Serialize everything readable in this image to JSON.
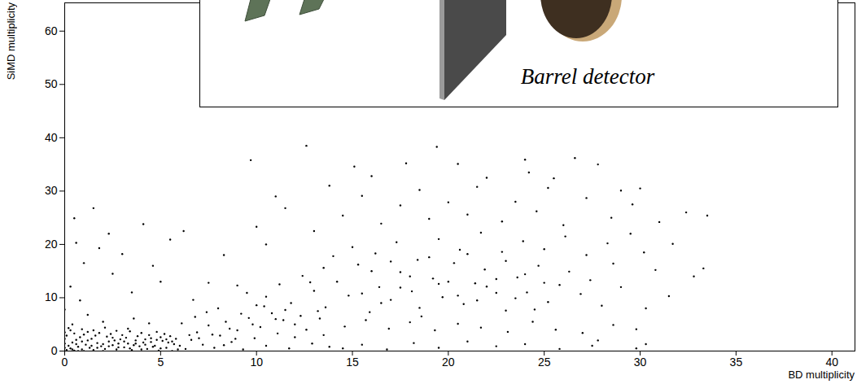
{
  "chart_data": {
    "type": "scatter",
    "x_label": "BD multiplicity",
    "y_label": "SiMD multiplicity",
    "annotations": [
      {
        "text": "Barrel detector"
      }
    ],
    "xlim": [
      0,
      41.2
    ],
    "xticks": [
      0,
      5,
      10,
      15,
      20,
      25,
      30,
      35,
      40
    ],
    "ylim": [
      0,
      65.3
    ],
    "yticks": [
      0,
      10,
      20,
      30,
      40,
      50,
      60
    ],
    "grid": false,
    "color": "#000000",
    "marker": "dot",
    "x": [
      0.1,
      0.3,
      0.5,
      0.7,
      0.9,
      1.1,
      1.3,
      1.5,
      1.7,
      1.9,
      2.1,
      2.3,
      2.5,
      2.7,
      2.9,
      3.1,
      3.3,
      3.5,
      3.7,
      3.9,
      4.1,
      4.3,
      4.5,
      4.7,
      4.9,
      5.1,
      5.3,
      5.5,
      5.7,
      5.9,
      0.2,
      0.4,
      0.6,
      0.8,
      1.0,
      1.2,
      0.3,
      0.1,
      0.5,
      0.7,
      1.0,
      1.4,
      1.6,
      1.8,
      2.0,
      2.2,
      2.4,
      2.6,
      2.8,
      3.0,
      3.2,
      3.4,
      3.6,
      3.8,
      4.0,
      4.2,
      4.4,
      4.6,
      4.8,
      5.0,
      5.2,
      5.4,
      5.6,
      5.8,
      6.0,
      0.0,
      0.0,
      0.0,
      0.0,
      0.2,
      0.9,
      1.5,
      2.1,
      2.7,
      3.3,
      0.4,
      0.6,
      0.9,
      1.2,
      1.4,
      1.7,
      2.0,
      2.3,
      2.5,
      2.8,
      3.1,
      3.4,
      3.7,
      4.0,
      4.2,
      4.5,
      4.8,
      5.0,
      5.3,
      5.6,
      6.3,
      6.6,
      6.9,
      7.2,
      7.5,
      7.8,
      8.1,
      8.4,
      8.7,
      9.0,
      9.3,
      9.6,
      9.9,
      10.2,
      10.5,
      10.8,
      11.1,
      11.4,
      11.7,
      12.0,
      12.3,
      12.6,
      12.9,
      13.2,
      13.5,
      13.8,
      6.1,
      6.8,
      7.4,
      8.0,
      8.6,
      9.2,
      9.8,
      10.4,
      11.0,
      6.5,
      7.0,
      7.7,
      8.3,
      8.9,
      14.5,
      15.5,
      16.8,
      18.2,
      19.5,
      21.0,
      22.5,
      24.0,
      25.8,
      27.5,
      29.8,
      30.3,
      10.5,
      11.2,
      11.8,
      12.4,
      13.0,
      13.6,
      14.2,
      14.8,
      15.3,
      15.9,
      16.4,
      17.0,
      17.5,
      18.1,
      18.6,
      19.2,
      19.7,
      20.3,
      20.8,
      21.4,
      21.9,
      22.5,
      23.0,
      23.6,
      24.1,
      24.7,
      25.2,
      25.8,
      26.3,
      26.9,
      27.4,
      28.0,
      12.0,
      13.3,
      14.6,
      15.7,
      16.9,
      18.0,
      19.3,
      20.5,
      21.7,
      23.1,
      24.4,
      25.6,
      27.0,
      28.6,
      14.0,
      15.0,
      16.2,
      17.3,
      18.4,
      19.5,
      20.6,
      21.7,
      22.8,
      23.9,
      25.0,
      26.1,
      27.2,
      28.3,
      16.0,
      17.0,
      18.0,
      19.0,
      20.0,
      21.0,
      22.0,
      23.0,
      24.0,
      25.0,
      15.5,
      16.5,
      17.5,
      18.5,
      19.5,
      20.5,
      21.5,
      22.5,
      23.5,
      24.5,
      13.5,
      12.8,
      11.5,
      10.0,
      9.5,
      9.0,
      10.0,
      11.5,
      13.0,
      14.5,
      15.5,
      16.5,
      17.5,
      18.5,
      19.0,
      20.0,
      21.0,
      21.5,
      22.0,
      22.8,
      23.5,
      24.0,
      24.6,
      25.2,
      26.0,
      26.6,
      27.2,
      27.8,
      28.5,
      29.0,
      30.0,
      29.6,
      9.7,
      12.6,
      15.1,
      17.8,
      19.4,
      11.0,
      10.5,
      13.8,
      16.0,
      20.5,
      25.5,
      24.2,
      29.5,
      30.2,
      31.0,
      31.7,
      32.4,
      33.5,
      33.3,
      32.8,
      30.8,
      31.5,
      29.0,
      30.3,
      28.6,
      29.8,
      27.8,
      0.6,
      0.5,
      1.5,
      1.0,
      0.3,
      1.8,
      2.3,
      0.8,
      1.2,
      2.5,
      3.5,
      4.1,
      5.5,
      6.2,
      4.6,
      3.0,
      0.0,
      7.5,
      8.3,
      6.7,
      5.0,
      2.0,
      0.4,
      3.6,
      4.4
    ],
    "values": [
      0.2,
      0.5,
      0.1,
      0.8,
      0.3,
      1.2,
      0.6,
      0.2,
      1.5,
      0.9,
      0.4,
      1.8,
      1.1,
      0.3,
      2.2,
      0.7,
      1.4,
      0.2,
      2.0,
      0.9,
      1.6,
      0.4,
      2.4,
      1.0,
      0.1,
      1.9,
      0.6,
      2.8,
      1.3,
      0.3,
      1.0,
      1.6,
      2.1,
      2.6,
      3.1,
      3.6,
      3.9,
      2.9,
      3.3,
      0.0,
      0.0,
      2.3,
      2.9,
      3.4,
      0.0,
      2.7,
      3.2,
      2.0,
      1.4,
      3.0,
      2.5,
      3.7,
      1.1,
      2.8,
      3.4,
      2.2,
      3.0,
      0.8,
      3.6,
      2.6,
      3.2,
      1.6,
      0.0,
      2.3,
      1.0,
      0.6,
      1.4,
      2.3,
      3.5,
      4.3,
      4.1,
      3.9,
      4.4,
      3.8,
      4.2,
      0.3,
      1.3,
      1.8,
      2.0,
      1.0,
      0.6,
      1.3,
      0.9,
      2.5,
      0.7,
      1.8,
      0.5,
      1.4,
      0.3,
      1.2,
      1.7,
      2.1,
      0.5,
      2.2,
      1.8,
      0.4,
      2.1,
      3.5,
      1.2,
      4.8,
      0.6,
      2.9,
      5.5,
      1.7,
      3.9,
      0.3,
      6.2,
      2.4,
      4.5,
      1.0,
      7.1,
      3.3,
      5.8,
      0.5,
      2.6,
      6.6,
      4.0,
      1.4,
      7.5,
      3.0,
      0.8,
      5.2,
      6.4,
      7.3,
      8.0,
      4.2,
      7.0,
      5.0,
      8.4,
      6.0,
      3.0,
      2.4,
      3.1,
      1.1,
      2.3,
      0.5,
      1.2,
      0.3,
      1.5,
      0.6,
      1.8,
      0.9,
      1.3,
      0.4,
      1.0,
      0.5,
      1.3,
      10.2,
      12.5,
      9.0,
      14.1,
      11.3,
      8.2,
      13.0,
      10.4,
      16.2,
      7.3,
      12.0,
      9.6,
      14.8,
      11.2,
      6.5,
      13.6,
      10.1,
      16.5,
      8.8,
      12.7,
      15.3,
      10.9,
      7.6,
      13.8,
      11.0,
      16.0,
      9.2,
      12.4,
      14.9,
      10.7,
      13.3,
      8.5,
      5.0,
      6.1,
      4.6,
      5.8,
      4.2,
      5.4,
      3.9,
      5.1,
      4.4,
      3.6,
      5.5,
      4.0,
      3.4,
      4.9,
      17.8,
      19.5,
      18.3,
      20.4,
      17.1,
      21.0,
      19.0,
      22.2,
      18.6,
      20.6,
      19.1,
      21.5,
      18.0,
      20.2,
      15.0,
      16.8,
      14.0,
      17.6,
      13.0,
      18.2,
      12.1,
      16.9,
      14.4,
      12.8,
      10.8,
      9.0,
      11.9,
      8.1,
      12.6,
      10.4,
      9.5,
      13.5,
      9.9,
      7.8,
      15.6,
      12.9,
      7.7,
      8.6,
      10.9,
      12.3,
      23.3,
      26.8,
      22.5,
      25.4,
      29.1,
      23.9,
      27.3,
      30.2,
      24.8,
      27.9,
      25.6,
      30.8,
      32.5,
      24.3,
      28.0,
      35.9,
      26.2,
      30.6,
      23.6,
      36.2,
      28.7,
      35.0,
      25.0,
      30.1,
      30.5,
      27.5,
      35.8,
      38.5,
      34.6,
      35.2,
      38.3,
      29.0,
      20.0,
      31.0,
      32.8,
      35.1,
      32.4,
      33.5,
      22.0,
      18.5,
      24.2,
      20.1,
      26.0,
      25.4,
      15.5,
      14.0,
      15.2,
      10.3,
      12.0,
      8.0,
      16.4,
      4.1,
      2.0,
      20.3,
      24.9,
      26.8,
      16.5,
      12.1,
      19.3,
      22.0,
      9.5,
      6.8,
      14.5,
      11.0,
      23.8,
      20.9,
      22.5,
      16.0,
      18.2,
      7.8,
      12.8,
      18.0,
      9.6,
      13.0,
      5.5,
      5.0,
      6.1,
      5.2
    ]
  }
}
